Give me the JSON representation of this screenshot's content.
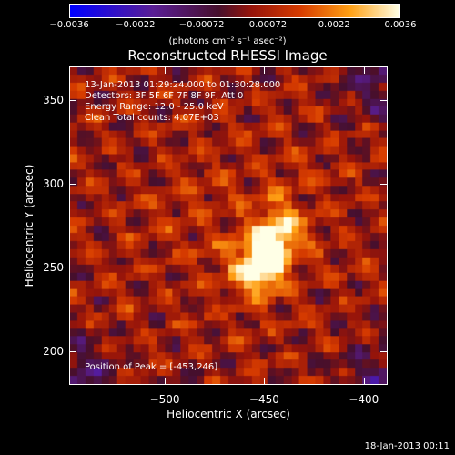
{
  "colorbar": {
    "min": -0.0036,
    "max": 0.0036,
    "tick_labels": [
      "-0.0036",
      "-0.0022",
      "-0.00072",
      "0.00072",
      "0.0022",
      "0.0036"
    ],
    "units": "(photons cm⁻² s⁻¹ asec⁻²)"
  },
  "chart_data": {
    "type": "heatmap",
    "title": "Reconstructed RHESSI Image",
    "xlabel": "Heliocentric X (arcsec)",
    "ylabel": "Heliocentric Y (arcsec)",
    "xlim": [
      -548,
      -388
    ],
    "ylim": [
      180,
      370
    ],
    "x_ticks": [
      -500,
      -450,
      -400
    ],
    "x_tick_labels": [
      "−500",
      "−450",
      "−400"
    ],
    "y_ticks": [
      200,
      250,
      300,
      350
    ],
    "y_tick_labels": [
      "200",
      "250",
      "300",
      "350"
    ],
    "peak": {
      "x": -453,
      "y": 246
    }
  },
  "annotations": {
    "time_range": "13-Jan-2013 01:29:24.000 to 01:30:28.000",
    "detectors": "Detectors: 3F 5F 6F 7F 8F 9F, Att 0",
    "energy": "Energy Range: 12.0 - 25.0 keV",
    "clean": "Clean    Total counts: 4.07E+03",
    "peak_label": "Position of Peak = [-453,246]"
  },
  "footer_date": "18-Jan-2013 00:11"
}
